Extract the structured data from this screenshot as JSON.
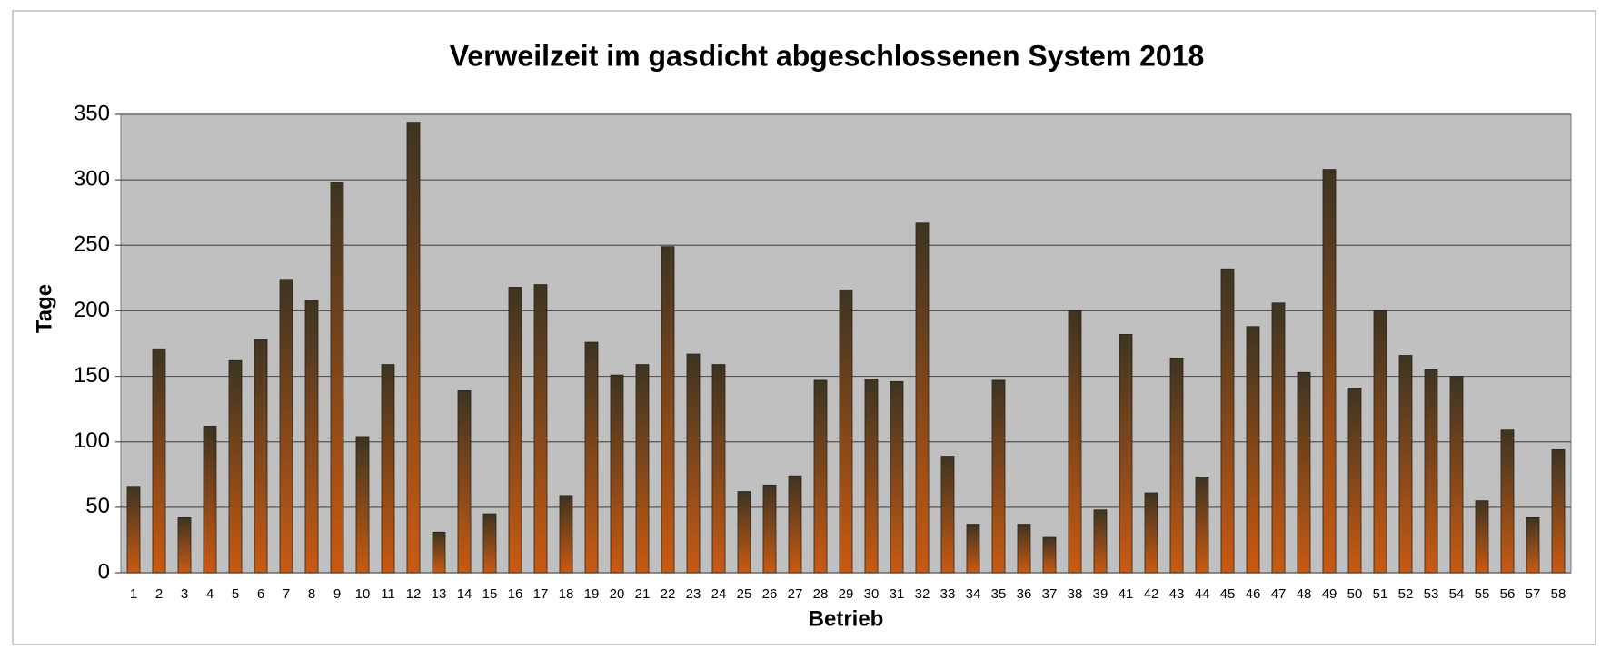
{
  "chart_data": {
    "type": "bar",
    "title": "Verweilzeit im gasdicht abgeschlossenen System 2018",
    "x_label": "Betrieb",
    "y_label": "Tage",
    "categories": [
      "1",
      "2",
      "3",
      "4",
      "5",
      "6",
      "7",
      "8",
      "9",
      "10",
      "11",
      "12",
      "13",
      "14",
      "15",
      "16",
      "17",
      "18",
      "19",
      "20",
      "21",
      "22",
      "23",
      "24",
      "25",
      "26",
      "27",
      "28",
      "29",
      "30",
      "31",
      "32",
      "33",
      "34",
      "35",
      "36",
      "37",
      "38",
      "39",
      "41",
      "42",
      "43",
      "44",
      "45",
      "46",
      "47",
      "48",
      "49",
      "50",
      "51",
      "52",
      "53",
      "54",
      "55",
      "56",
      "57",
      "58"
    ],
    "values": [
      66,
      171,
      42,
      112,
      162,
      178,
      224,
      208,
      298,
      104,
      159,
      344,
      31,
      139,
      45,
      218,
      220,
      59,
      176,
      151,
      159,
      249,
      167,
      159,
      62,
      67,
      74,
      147,
      216,
      148,
      146,
      267,
      89,
      37,
      147,
      37,
      27,
      200,
      48,
      182,
      61,
      164,
      73,
      232,
      188,
      206,
      153,
      308,
      141,
      200,
      166,
      155,
      150,
      55,
      109,
      42,
      94
    ],
    "colors": [
      "#3d3422",
      "#c85a12"
    ],
    "ylim": [
      0,
      350
    ],
    "yticks": [
      0,
      50,
      100,
      150,
      200,
      250,
      300,
      350
    ],
    "grid": true
  }
}
